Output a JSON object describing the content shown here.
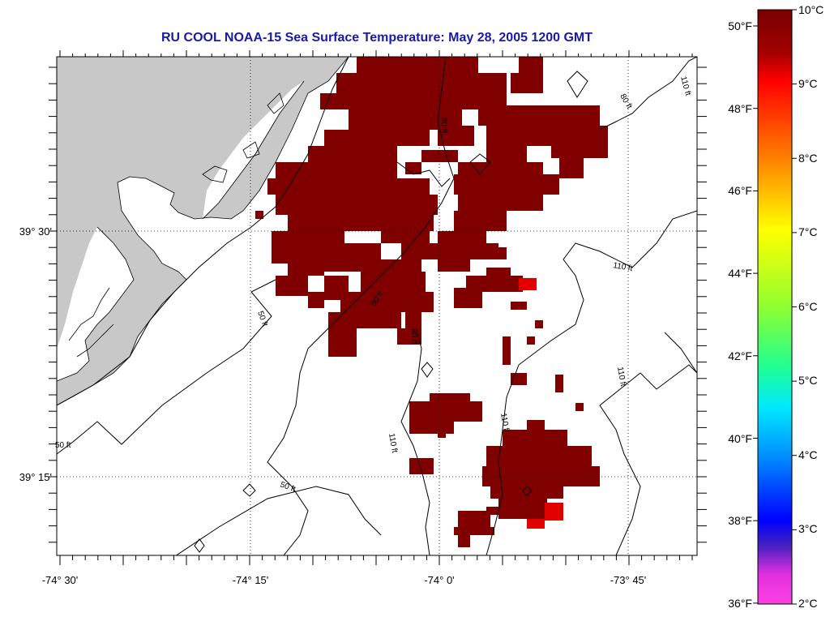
{
  "title": "RU COOL  NOAA-15  Sea Surface Temperature:  May 28, 2005 1200 GMT",
  "colors": {
    "sst_warm": "#800000",
    "sst_hot": "#e00000",
    "land": "#c8c8c8",
    "title": "#1a1aaa"
  },
  "map": {
    "lon_labels": [
      "-74° 30'",
      "-74° 15'",
      "-74° 0'",
      "-73° 45'"
    ],
    "lat_labels": [
      "39° 30'",
      "39° 15'"
    ]
  },
  "isobaths": [
    {
      "label": "50 ft"
    },
    {
      "label": "50 ft"
    },
    {
      "label": "50 ft"
    },
    {
      "label": "80 ft"
    },
    {
      "label": "80 ft"
    },
    {
      "label": "80 ft"
    },
    {
      "label": "110 ft"
    },
    {
      "label": "110 ft"
    },
    {
      "label": "110 ft"
    },
    {
      "label": "110 ft"
    },
    {
      "label": "110 ft"
    },
    {
      "label": "80 ft"
    }
  ],
  "colorbar": {
    "celsius_labels": [
      "10°C",
      "9°C",
      "8°C",
      "7°C",
      "6°C",
      "5°C",
      "4°C",
      "3°C",
      "2°C"
    ],
    "fahrenheit_labels": [
      "50°F",
      "48°F",
      "46°F",
      "44°F",
      "42°F",
      "40°F",
      "38°F",
      "36°F"
    ]
  }
}
